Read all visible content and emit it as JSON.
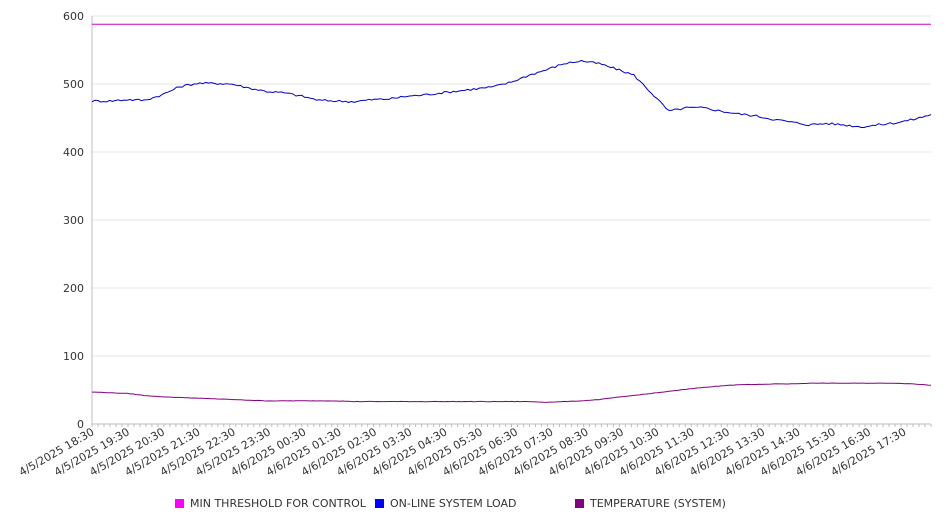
{
  "chart_data": {
    "type": "line",
    "title": "",
    "xlabel": "",
    "ylabel": "",
    "ylim": [
      0,
      600
    ],
    "yticks": [
      "0",
      "100",
      "200",
      "300",
      "400",
      "500",
      "600"
    ],
    "grid": true,
    "legend_position": "bottom",
    "x_tick_labels": [
      "4/5/2025 18:30",
      "4/5/2025 19:30",
      "4/5/2025 20:30",
      "4/5/2025 21:30",
      "4/5/2025 22:30",
      "4/5/2025 23:30",
      "4/6/2025 00:30",
      "4/6/2025 01:30",
      "4/6/2025 02:30",
      "4/6/2025 03:30",
      "4/6/2025 04:30",
      "4/6/2025 05:30",
      "4/6/2025 06:30",
      "4/6/2025 07:30",
      "4/6/2025 08:30",
      "4/6/2025 09:30",
      "4/6/2025 10:30",
      "4/6/2025 11:30",
      "4/6/2025 12:30",
      "4/6/2025 13:30",
      "4/6/2025 14:30",
      "4/6/2025 15:30",
      "4/6/2025 16:30",
      "4/6/2025 17:30"
    ],
    "x": [
      "4/5/2025 18:00",
      "4/5/2025 18:30",
      "4/5/2025 19:00",
      "4/5/2025 19:30",
      "4/5/2025 20:00",
      "4/5/2025 20:30",
      "4/5/2025 21:00",
      "4/5/2025 21:30",
      "4/5/2025 22:00",
      "4/5/2025 22:30",
      "4/5/2025 23:00",
      "4/5/2025 23:30",
      "4/6/2025 00:00",
      "4/6/2025 00:30",
      "4/6/2025 01:00",
      "4/6/2025 01:30",
      "4/6/2025 02:00",
      "4/6/2025 02:30",
      "4/6/2025 03:00",
      "4/6/2025 03:30",
      "4/6/2025 04:00",
      "4/6/2025 04:30",
      "4/6/2025 05:00",
      "4/6/2025 05:30",
      "4/6/2025 06:00",
      "4/6/2025 06:30",
      "4/6/2025 07:00",
      "4/6/2025 07:30",
      "4/6/2025 08:00",
      "4/6/2025 08:30",
      "4/6/2025 09:00",
      "4/6/2025 09:30",
      "4/6/2025 10:00",
      "4/6/2025 10:30",
      "4/6/2025 11:00",
      "4/6/2025 11:30",
      "4/6/2025 12:00",
      "4/6/2025 12:30",
      "4/6/2025 13:00",
      "4/6/2025 13:30",
      "4/6/2025 14:00",
      "4/6/2025 14:30",
      "4/6/2025 15:00",
      "4/6/2025 15:30",
      "4/6/2025 16:00",
      "4/6/2025 16:30",
      "4/6/2025 17:00",
      "4/6/2025 17:30",
      "4/6/2025 18:00"
    ],
    "series": [
      {
        "name": "MIN THRESHOLD FOR CONTROL",
        "color": "#cc00cc",
        "values": [
          588,
          588,
          588,
          588,
          588,
          588,
          588,
          588,
          588,
          588,
          588,
          588,
          588,
          588,
          588,
          588,
          588,
          588,
          588,
          588,
          588,
          588,
          588,
          588,
          588,
          588,
          588,
          588,
          588,
          588,
          588,
          588,
          588,
          588,
          588,
          588,
          588,
          588,
          588,
          588,
          588,
          588,
          588,
          588,
          588,
          588,
          588,
          588,
          588
        ]
      },
      {
        "name": "ON-LINE SYSTEM LOAD",
        "color": "#0000cc",
        "values": [
          475,
          475,
          477,
          476,
          484,
          496,
          501,
          501,
          500,
          494,
          489,
          487,
          482,
          476,
          475,
          474,
          477,
          478,
          482,
          484,
          487,
          490,
          493,
          496,
          503,
          513,
          521,
          530,
          534,
          530,
          522,
          513,
          487,
          460,
          465,
          465,
          460,
          456,
          453,
          448,
          444,
          440,
          442,
          440,
          437,
          440,
          443,
          448,
          455
        ]
      },
      {
        "name": "TEMPERATURE (SYSTEM)",
        "color": "#800080",
        "values": [
          47,
          46,
          45,
          42,
          40,
          39,
          38,
          37,
          36,
          35,
          34,
          34,
          34,
          34,
          34,
          33,
          33,
          33,
          33,
          33,
          33,
          33,
          33,
          33,
          33,
          33,
          32,
          33,
          34,
          36,
          39,
          42,
          45,
          48,
          51,
          54,
          56,
          58,
          58,
          59,
          59,
          60,
          60,
          60,
          60,
          60,
          60,
          59,
          57
        ]
      }
    ]
  },
  "legend": {
    "items": [
      {
        "label": "MIN THRESHOLD FOR CONTROL",
        "color": "#ff00ff"
      },
      {
        "label": "ON-LINE SYSTEM LOAD",
        "color": "#0000ff"
      },
      {
        "label": "TEMPERATURE (SYSTEM)",
        "color": "#800080"
      }
    ]
  }
}
